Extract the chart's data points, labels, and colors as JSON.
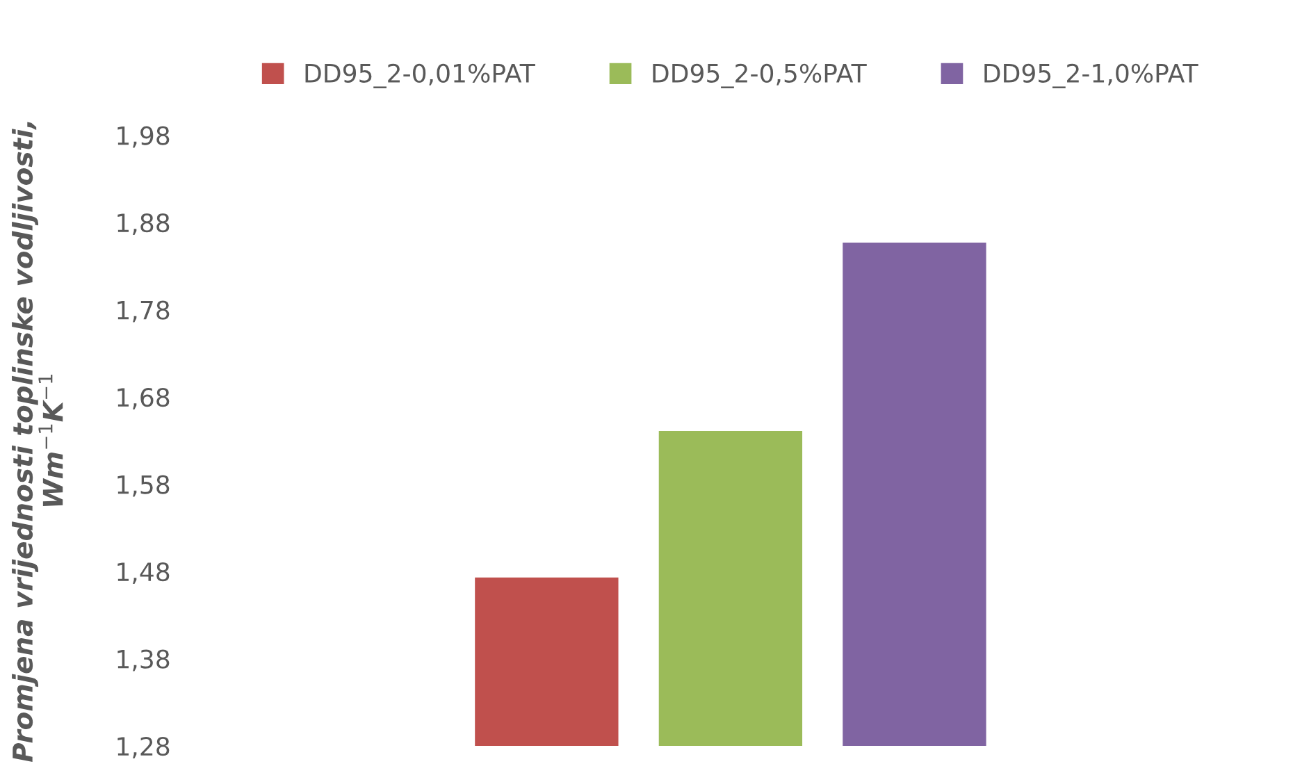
{
  "chart_data": {
    "type": "bar",
    "categories": [
      null
    ],
    "ylabel": "Promjena vrijednosti toplinske vodljivosti, Wm$^{−1}$K$^{−1}$",
    "series": [
      {
        "name": "DD95_2-0,01%PAT",
        "color": "#c0504d",
        "values": [
          1.473
        ]
      },
      {
        "name": "DD95_2-0,5%PAT",
        "color": "#9bbb59",
        "values": [
          1.641
        ]
      },
      {
        "name": "DD95_2-1,0%PAT",
        "color": "#8064a2",
        "values": [
          1.857
        ]
      }
    ],
    "ylim": [
      1.28,
      1.98
    ],
    "yticks": [
      {
        "value": 1.28,
        "label": "1,28"
      },
      {
        "value": 1.38,
        "label": "1,38"
      },
      {
        "value": 1.48,
        "label": "1,48"
      },
      {
        "value": 1.58,
        "label": "1,58"
      },
      {
        "value": 1.68,
        "label": "1,68"
      },
      {
        "value": 1.78,
        "label": "1,78"
      },
      {
        "value": 1.88,
        "label": "1,88"
      },
      {
        "value": 1.98,
        "label": "1,98"
      }
    ],
    "grid": false,
    "legend": "top"
  }
}
